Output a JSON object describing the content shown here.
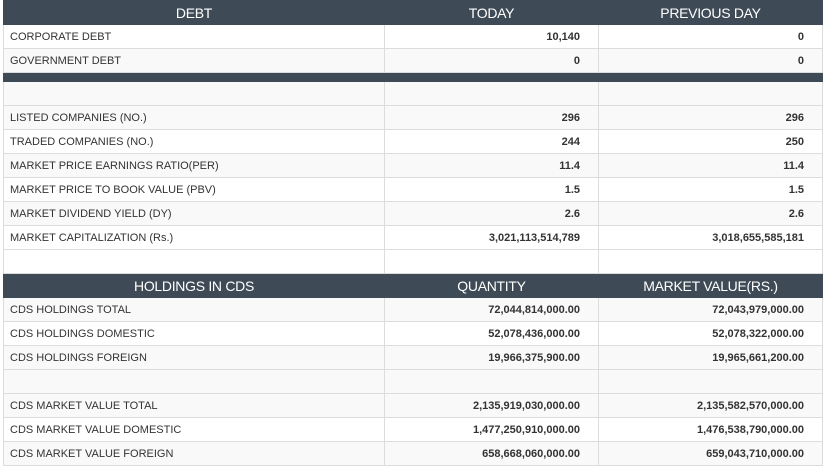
{
  "debt_section": {
    "headers": [
      "DEBT",
      "TODAY",
      "PREVIOUS DAY"
    ],
    "rows": [
      {
        "label": "CORPORATE DEBT",
        "today": "10,140",
        "previous": "0"
      },
      {
        "label": "GOVERNMENT DEBT",
        "today": "0",
        "previous": "0"
      }
    ]
  },
  "market_section": {
    "rows": [
      {
        "label": "LISTED COMPANIES (NO.)",
        "today": "296",
        "previous": "296"
      },
      {
        "label": "TRADED COMPANIES (NO.)",
        "today": "244",
        "previous": "250"
      },
      {
        "label": "MARKET PRICE EARNINGS RATIO(PER)",
        "today": "11.4",
        "previous": "11.4"
      },
      {
        "label": "MARKET PRICE TO BOOK VALUE (PBV)",
        "today": "1.5",
        "previous": "1.5"
      },
      {
        "label": "MARKET DIVIDEND YIELD (DY)",
        "today": "2.6",
        "previous": "2.6"
      },
      {
        "label": "MARKET CAPITALIZATION (Rs.)",
        "today": "3,021,113,514,789",
        "previous": "3,018,655,585,181"
      }
    ]
  },
  "holdings_section": {
    "headers": [
      "HOLDINGS IN CDS",
      "QUANTITY",
      "MARKET VALUE(RS.)"
    ],
    "rows": [
      {
        "label": "CDS HOLDINGS TOTAL",
        "quantity": "72,044,814,000.00",
        "market_value": "72,043,979,000.00"
      },
      {
        "label": "CDS HOLDINGS DOMESTIC",
        "quantity": "52,078,436,000.00",
        "market_value": "52,078,322,000.00"
      },
      {
        "label": "CDS HOLDINGS FOREIGN",
        "quantity": "19,966,375,900.00",
        "market_value": "19,965,661,200.00"
      }
    ],
    "value_rows": [
      {
        "label": "CDS MARKET VALUE TOTAL",
        "quantity": "2,135,919,030,000.00",
        "market_value": "2,135,582,570,000.00"
      },
      {
        "label": "CDS MARKET VALUE DOMESTIC",
        "quantity": "1,477,250,910,000.00",
        "market_value": "1,476,538,790,000.00"
      },
      {
        "label": "CDS MARKET VALUE FOREIGN",
        "quantity": "658,668,060,000.00",
        "market_value": "659,043,710,000.00"
      }
    ]
  },
  "colors": {
    "header_bg": "#3e4a56",
    "header_text": "#ffffff",
    "row_alt": "#f9f9f9",
    "border": "#dcdcdc"
  }
}
